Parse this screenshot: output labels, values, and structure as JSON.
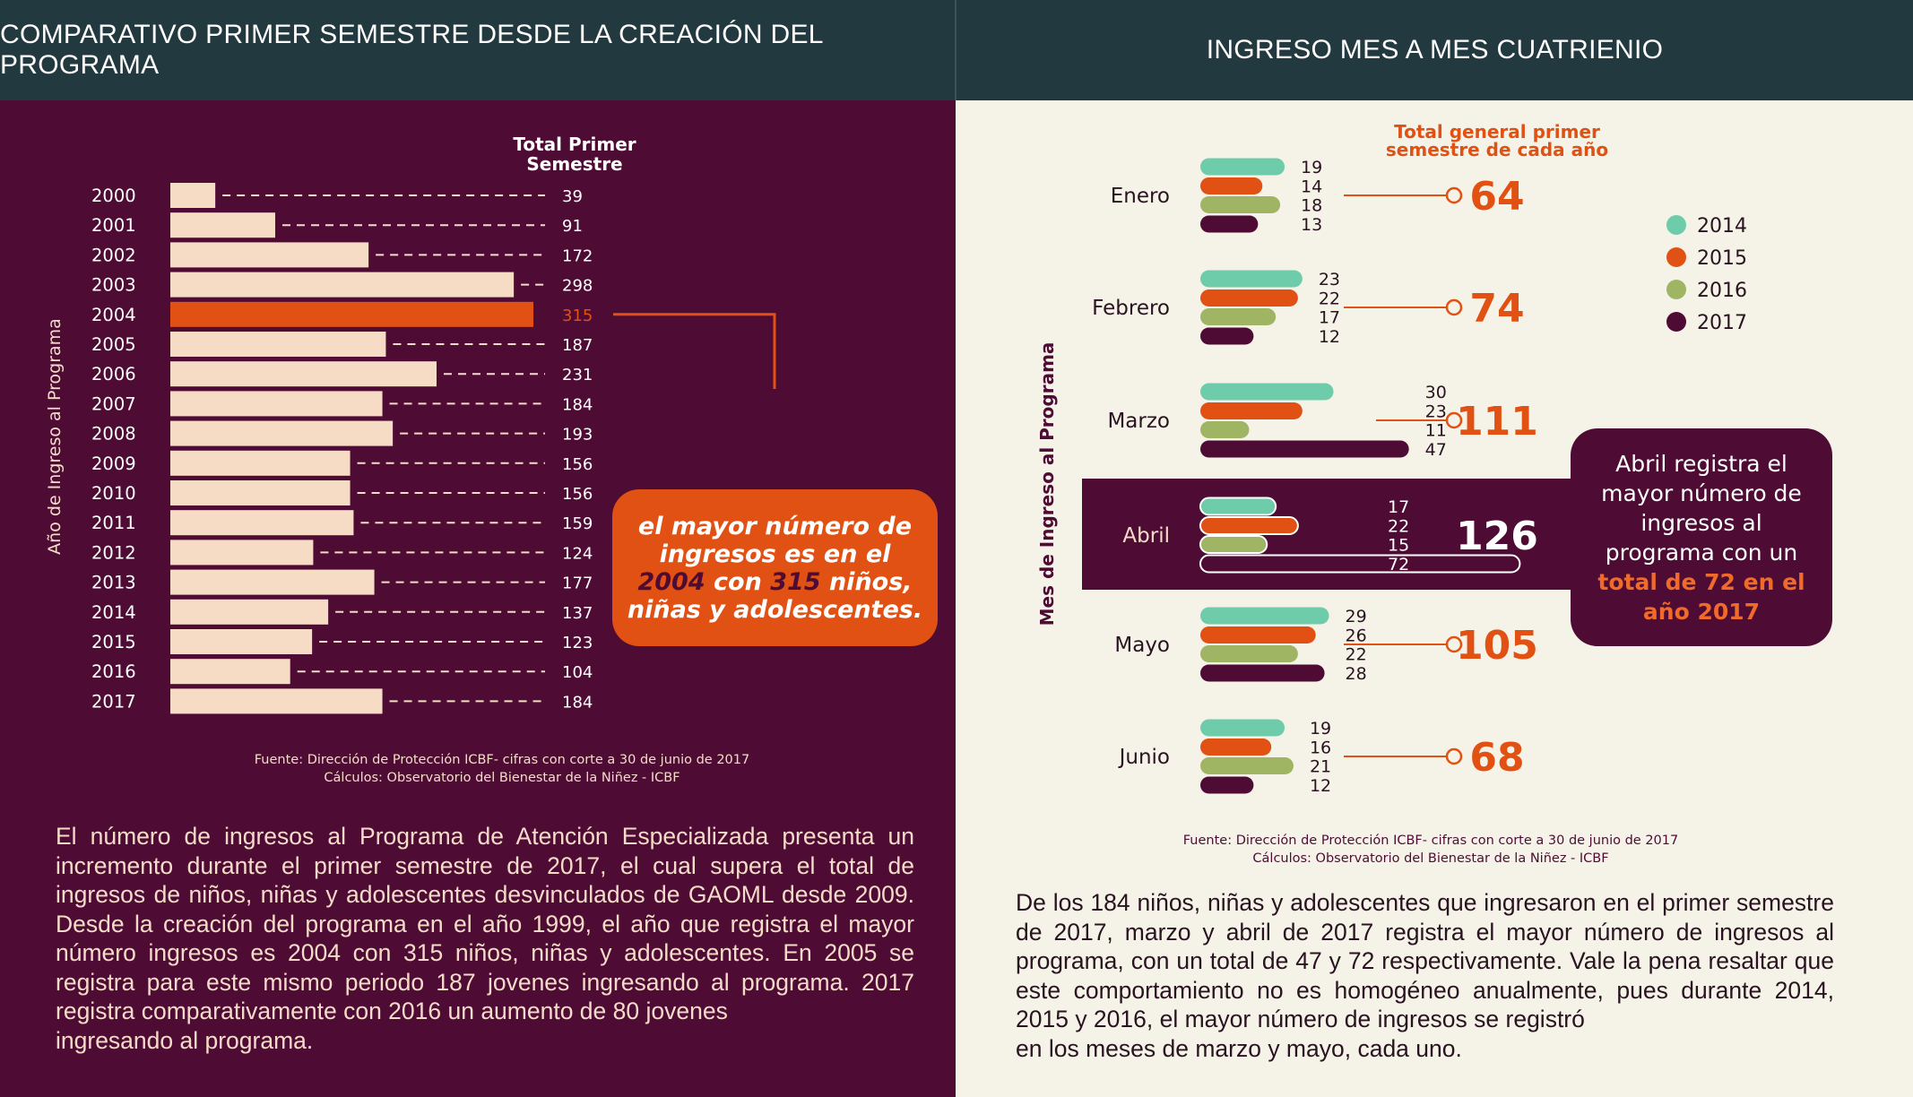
{
  "headers": {
    "left": "COMPARATIVO PRIMER SEMESTRE DESDE LA CREACIÓN DEL PROGRAMA",
    "right": "INGRESO MES A MES CUATRIENIO"
  },
  "left_panel": {
    "callout": {
      "line1": "el mayor número de",
      "line2": "ingresos es en el",
      "line3_year": "2004",
      "line3_mid": " con ",
      "line3_num": "315",
      "line3_end": " niños,",
      "line4": "niñas y adolescentes."
    },
    "source_line1": "Fuente: Dirección de Protección ICBF- cifras con corte a 30 de junio de 2017",
    "source_line2": "Cálculos: Observatorio del Bienestar de la Niñez - ICBF",
    "paragraph_body": "El número de ingresos al Programa de Atención Especializada presenta un incremento durante el primer semestre de 2017, el cual supera el total de ingresos de niños, niñas y adolescentes desvinculados de GAOML desde 2009. Desde la creación del programa en el año 1999, el año que registra el mayor número ingresos es 2004 con 315 niños, niñas y adolescentes.  En 2005 se registra para este mismo periodo 187 jovenes ingresando al programa. 2017 registra comparativamente con 2016 un aumento de 80 jovenes",
    "paragraph_last": "ingresando al programa."
  },
  "right_panel": {
    "callout": {
      "line1": "Abril registra el",
      "line2": "mayor número de",
      "line3": "ingresos al",
      "line4": "programa con un",
      "line5": "total de 72 en el",
      "line6": "año 2017"
    },
    "source_line1": "Fuente: Dirección de Protección ICBF- cifras con corte a 30 de junio de 2017",
    "source_line2": "Cálculos: Observatorio del Bienestar de la Niñez - ICBF",
    "paragraph_body": "De los 184 niños, niñas y adolescentes que ingresaron en el primer semestre de 2017, marzo y abril de 2017 registra el mayor número de ingresos  al programa, con un total de 47 y 72 respectivamente. Vale la pena resaltar que este comportamiento no es homogéneo anualmente, pues durante 2014, 2015 y 2016, el mayor número de ingresos se registró",
    "paragraph_last": "en los meses de marzo y mayo, cada uno."
  },
  "chart_data": [
    {
      "type": "bar",
      "orientation": "horizontal",
      "ylabel": "Año de Ingreso al Programa",
      "value_header": "Total Primer Semestre",
      "categories": [
        "2000",
        "2001",
        "2002",
        "2003",
        "2004",
        "2005",
        "2006",
        "2007",
        "2008",
        "2009",
        "2010",
        "2011",
        "2012",
        "2013",
        "2014",
        "2015",
        "2016",
        "2017"
      ],
      "values": [
        39,
        91,
        172,
        298,
        315,
        187,
        231,
        184,
        193,
        156,
        156,
        159,
        124,
        177,
        137,
        123,
        104,
        184
      ],
      "highlight": "2004",
      "colors": {
        "bar": "#f7dcc5",
        "highlight": "#e05113",
        "background": "#4e0c35"
      }
    },
    {
      "type": "bar",
      "orientation": "horizontal",
      "grouped": true,
      "ylabel": "Mes de Ingreso al Programa",
      "total_label": "Total general primer semestre de cada año",
      "categories": [
        "Enero",
        "Febrero",
        "Marzo",
        "Abril",
        "Mayo",
        "Junio"
      ],
      "series": [
        {
          "name": "2014",
          "color": "#6fccaa",
          "values": [
            19,
            23,
            30,
            17,
            29,
            19
          ]
        },
        {
          "name": "2015",
          "color": "#e05113",
          "values": [
            14,
            22,
            23,
            22,
            26,
            16
          ]
        },
        {
          "name": "2016",
          "color": "#9fb563",
          "values": [
            18,
            17,
            11,
            15,
            22,
            21
          ]
        },
        {
          "name": "2017",
          "color": "#4e0c35",
          "values": [
            13,
            12,
            47,
            72,
            28,
            12
          ]
        }
      ],
      "totals": [
        64,
        74,
        111,
        126,
        105,
        68
      ],
      "highlight": "Abril",
      "legend": "right"
    }
  ]
}
